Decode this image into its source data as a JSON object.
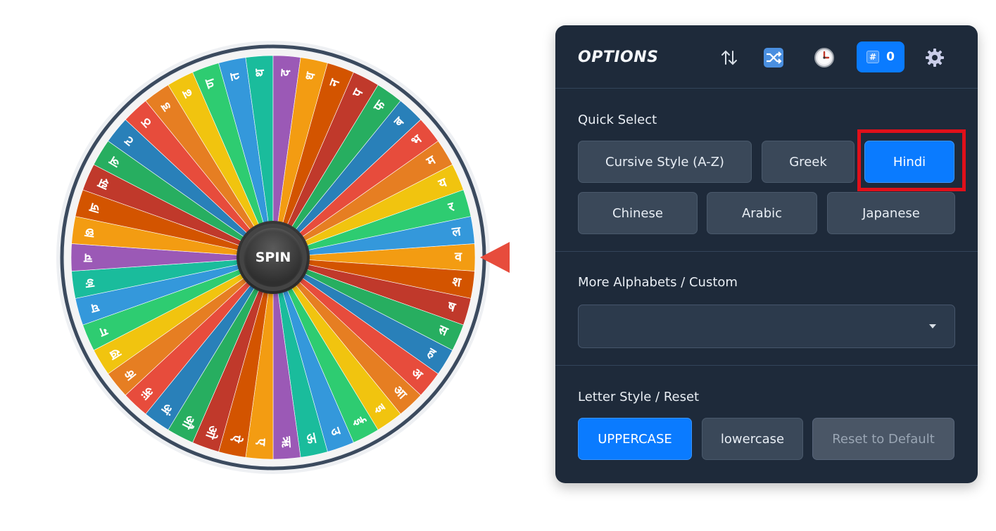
{
  "wheel": {
    "spin_label": "SPIN",
    "letters": [
      "व",
      "श",
      "ष",
      "स",
      "ह",
      "अ",
      "आ",
      "इ",
      "ई",
      "उ",
      "ऊ",
      "ऋ",
      "ए",
      "ऐ",
      "ओ",
      "औ",
      "अं",
      "अः",
      "क",
      "ख",
      "ग",
      "घ",
      "ङ",
      "च",
      "छ",
      "ज",
      "झ",
      "ञ",
      "ट",
      "ठ",
      "ड",
      "ढ",
      "ण",
      "त",
      "थ",
      "द",
      "ध",
      "न",
      "प",
      "फ",
      "ब",
      "भ",
      "म",
      "य",
      "र",
      "ल"
    ],
    "segment_colors": [
      "#f39c12",
      "#d35400",
      "#c0392b",
      "#27ae60",
      "#2980b9",
      "#e74c3c",
      "#e67e22",
      "#f1c40f",
      "#2ecc71",
      "#3498db",
      "#1abc9c",
      "#9b59b6"
    ],
    "pointer_color": "#e74c3c",
    "rim_color": "#3b4a5e"
  },
  "options": {
    "title": "OPTIONS",
    "counter_value": "0",
    "icons": {
      "sort": "sort-arrows-icon",
      "shuffle": "shuffle-icon",
      "clock": "clock-icon",
      "counter": "hash-icon",
      "settings": "gear-icon"
    },
    "quick_select": {
      "label": "Quick Select",
      "buttons": [
        "Cursive Style (A-Z)",
        "Greek",
        "Hindi",
        "Chinese",
        "Arabic",
        "Japanese"
      ],
      "selected": "Hindi"
    },
    "more_alphabets": {
      "label": "More Alphabets / Custom",
      "selected_value": ""
    },
    "letter_style": {
      "label": "Letter Style / Reset",
      "uppercase": "UPPERCASE",
      "lowercase": "lowercase",
      "reset": "Reset to Default",
      "selected": "UPPERCASE"
    }
  },
  "colors": {
    "panel_bg": "#1e2a3a",
    "accent": "#0a7bff",
    "highlight_box": "#e0101a"
  }
}
